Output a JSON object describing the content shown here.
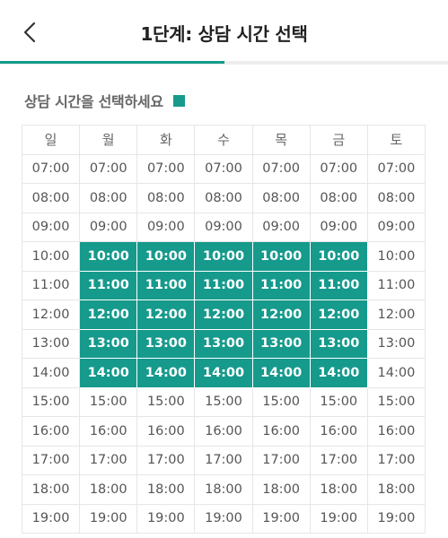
{
  "header": {
    "title": "1단계: 상담 시간 선택",
    "progress_fraction": 0.5,
    "accent_color": "#159a8c",
    "back_icon": "chevron-left-icon"
  },
  "subtitle": "상담 시간을 선택하세요",
  "days": [
    "일",
    "월",
    "화",
    "수",
    "목",
    "금",
    "토"
  ],
  "times": [
    "07:00",
    "08:00",
    "09:00",
    "10:00",
    "11:00",
    "12:00",
    "13:00",
    "14:00",
    "15:00",
    "16:00",
    "17:00",
    "18:00",
    "19:00"
  ],
  "selected": {
    "day_indices": [
      1,
      2,
      3,
      4,
      5
    ],
    "times": [
      "10:00",
      "11:00",
      "12:00",
      "13:00",
      "14:00"
    ]
  }
}
